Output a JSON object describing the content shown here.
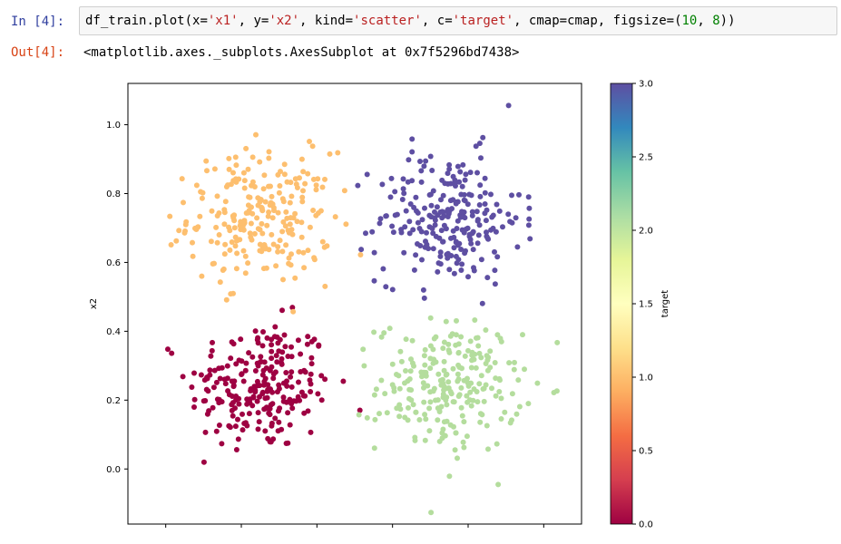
{
  "cell": {
    "in_prompt": "In [4]:",
    "out_prompt": "Out[4]:",
    "code": {
      "obj": "df_train",
      "dot_call": ".plot(",
      "arg1_key": "x=",
      "arg1_val": "'x1'",
      "sep1": ", ",
      "arg2_key": "y=",
      "arg2_val": "'x2'",
      "sep2": ", ",
      "arg3_key": "kind=",
      "arg3_val": "'scatter'",
      "sep3": ", ",
      "arg4_key": "c=",
      "arg4_val": "'target'",
      "sep4": ", ",
      "arg5": "cmap=cmap",
      "sep5": ", ",
      "arg6_key": "figsize=(",
      "arg6_n1": "10",
      "arg6_sep": ", ",
      "arg6_n2": "8",
      "close": "))"
    },
    "output": "<matplotlib.axes._subplots.AxesSubplot at 0x7f5296bd7438>"
  },
  "chart_data": {
    "type": "scatter",
    "xlabel": "",
    "ylabel": "x2",
    "colorbar_label": "target",
    "ylim": [
      -0.16,
      1.12
    ],
    "y_ticks": [
      0.0,
      0.2,
      0.4,
      0.6,
      0.8,
      1.0
    ],
    "y_tick_labels": [
      "0.0",
      "0.2",
      "0.4",
      "0.6",
      "0.8",
      "1.0"
    ],
    "x_tick_count": 6,
    "colorbar_range": [
      0.0,
      3.0
    ],
    "colorbar_ticks": [
      0.0,
      0.5,
      1.0,
      1.5,
      2.0,
      2.5,
      3.0
    ],
    "colorbar_tick_labels": [
      "0.0",
      "0.5",
      "1.0",
      "1.5",
      "2.0",
      "2.5",
      "3.0"
    ],
    "cmap": "Spectral",
    "colors": {
      "target_0": "#9e0142",
      "target_1": "#fdbf6f",
      "target_2": "#b4dd9d",
      "target_3": "#5e4fa2"
    },
    "clusters": [
      {
        "target": 0,
        "x_center": 0.25,
        "y_center": 0.24,
        "spread": 0.095,
        "count": 240
      },
      {
        "target": 1,
        "x_center": 0.25,
        "y_center": 0.73,
        "spread": 0.095,
        "count": 240
      },
      {
        "target": 2,
        "x_center": 0.75,
        "y_center": 0.24,
        "spread": 0.095,
        "count": 240
      },
      {
        "target": 3,
        "x_center": 0.75,
        "y_center": 0.73,
        "spread": 0.095,
        "count": 240
      }
    ]
  }
}
